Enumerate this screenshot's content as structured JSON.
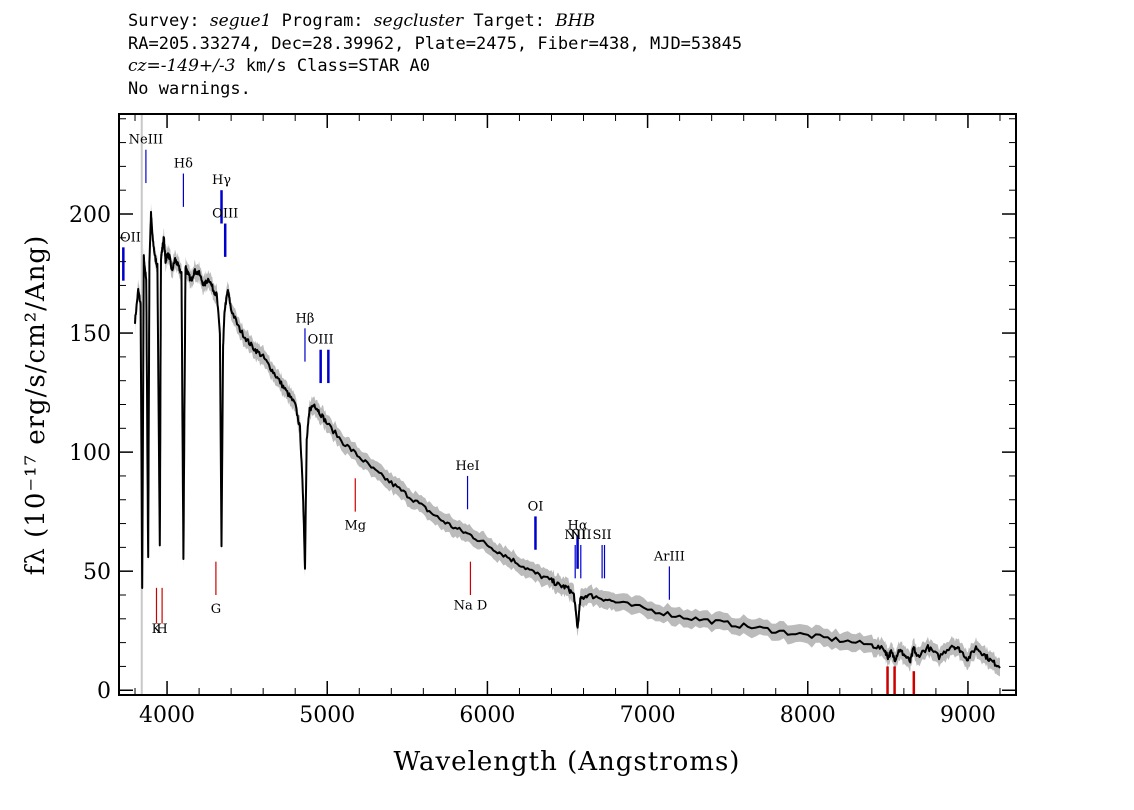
{
  "header": {
    "survey_label": "Survey:",
    "survey": "segue1",
    "program_label": "Program:",
    "program": "segcluster",
    "target_label": "Target:",
    "target": "BHB",
    "line2": "RA=205.33274, Dec=28.39962, Plate=2475, Fiber=438, MJD=53845",
    "cz_value": "cz=-149+/-3",
    "cz_rest": "km/s Class=STAR A0",
    "line4": "No warnings."
  },
  "chart_data": {
    "type": "line",
    "xlabel": "Wavelength (Angstroms)",
    "ylabel": "fλ (10⁻¹⁷ erg/s/cm²/Ang)",
    "xlim": [
      3700,
      9300
    ],
    "ylim": [
      -2,
      242
    ],
    "x_ticks": [
      4000,
      5000,
      6000,
      7000,
      8000,
      9000
    ],
    "y_ticks": [
      0,
      50,
      100,
      150,
      200
    ],
    "x_tick_labels": [
      "4000",
      "5000",
      "6000",
      "7000",
      "8000",
      "9000"
    ],
    "y_tick_labels": [
      "0",
      "50",
      "100",
      "150",
      "200"
    ],
    "grid": false,
    "colors": {
      "spectrum": "#000000",
      "error_band": "#bbbbbb",
      "emission": "#0000cc",
      "absorption": "#cc0000",
      "marker": "#c8c8c8"
    },
    "series": [
      {
        "x": [
          3800,
          3820,
          3835,
          3845,
          3855,
          3870,
          3882,
          3890,
          3900,
          3910,
          3925,
          3940,
          3955,
          3962,
          3970,
          3980,
          3990,
          4000,
          4015,
          4030,
          4050,
          4070,
          4090,
          4102,
          4115,
          4130,
          4150,
          4170,
          4200,
          4230,
          4260,
          4290,
          4310,
          4330,
          4340,
          4350,
          4360,
          4380,
          4400,
          4450,
          4500,
          4550,
          4600,
          4650,
          4700,
          4750,
          4800,
          4830,
          4850,
          4861,
          4872,
          4890,
          4920,
          4950,
          5000,
          5100,
          5200,
          5300,
          5400,
          5500,
          5600,
          5700,
          5800,
          5900,
          6000,
          6100,
          6200,
          6300,
          6400,
          6450,
          6500,
          6540,
          6563,
          6580,
          6620,
          6700,
          6800,
          7000,
          7200,
          7400,
          7600,
          7800,
          8000,
          8200,
          8400,
          8480,
          8500,
          8520,
          8545,
          8570,
          8600,
          8640,
          8662,
          8680,
          8750,
          8820,
          8900,
          8950,
          9000,
          9050,
          9100,
          9150,
          9200
        ],
        "y": [
          155,
          168,
          162,
          42,
          182,
          172,
          55,
          180,
          200,
          190,
          182,
          178,
          60,
          182,
          185,
          190,
          180,
          183,
          182,
          176,
          181,
          178,
          175,
          55,
          178,
          175,
          172,
          176,
          175,
          170,
          173,
          168,
          166,
          150,
          60,
          145,
          160,
          168,
          160,
          152,
          147,
          143,
          140,
          135,
          130,
          125,
          120,
          110,
          80,
          52,
          105,
          118,
          120,
          117,
          112,
          104,
          98,
          92,
          87,
          82,
          77,
          72,
          68,
          65,
          61,
          57,
          53,
          49,
          46,
          44,
          43,
          40,
          26,
          38,
          40,
          39,
          37,
          34,
          31,
          29,
          27,
          25,
          23,
          21,
          19,
          17,
          14,
          16,
          13,
          17,
          15,
          12,
          18,
          14,
          18,
          14,
          19,
          17,
          13,
          18,
          15,
          12,
          10
        ]
      }
    ],
    "marker_line_x": 3842,
    "emission_lines": [
      {
        "label": "OII",
        "x": 3727,
        "y0": 172,
        "y1": 186,
        "bold": true
      },
      {
        "label": "NeIII",
        "x": 3868,
        "y0": 213,
        "y1": 227,
        "bold": false
      },
      {
        "label": "Hδ",
        "x": 4102,
        "y0": 203,
        "y1": 217,
        "bold": false
      },
      {
        "label": "Hγ",
        "x": 4340,
        "y0": 196,
        "y1": 210,
        "bold": true
      },
      {
        "label": "OIII",
        "x": 4363,
        "y0": 182,
        "y1": 196,
        "bold": true
      },
      {
        "label": "Hβ",
        "x": 4861,
        "y0": 138,
        "y1": 152,
        "bold": false
      },
      {
        "label": "OIII",
        "x": 4959,
        "y0": 129,
        "y1": 143,
        "bold": true
      },
      {
        "label": "",
        "x": 5007,
        "y0": 129,
        "y1": 143,
        "bold": true
      },
      {
        "label": "HeI",
        "x": 5876,
        "y0": 76,
        "y1": 90,
        "bold": false
      },
      {
        "label": "OI",
        "x": 6300,
        "y0": 59,
        "y1": 73,
        "bold": true
      },
      {
        "label": "NII",
        "x": 6548,
        "y0": 47,
        "y1": 61,
        "bold": false
      },
      {
        "label": "Hα",
        "x": 6563,
        "y0": 51,
        "y1": 65,
        "bold": true
      },
      {
        "label": "NII",
        "x": 6583,
        "y0": 47,
        "y1": 61,
        "bold": false
      },
      {
        "label": "SII",
        "x": 6716,
        "y0": 47,
        "y1": 61,
        "bold": false
      },
      {
        "label": "",
        "x": 6731,
        "y0": 47,
        "y1": 61,
        "bold": false
      },
      {
        "label": "ArIII",
        "x": 7136,
        "y0": 38,
        "y1": 52,
        "bold": false
      }
    ],
    "absorption_lines": [
      {
        "label": "",
        "x": 3934,
        "y0": 28,
        "y1": 43
      },
      {
        "label": "",
        "x": 3969,
        "y0": 28,
        "y1": 43
      },
      {
        "label": "G",
        "x": 4305,
        "y0": 40,
        "y1": 54
      },
      {
        "label": "Mg",
        "x": 5175,
        "y0": 75,
        "y1": 89
      },
      {
        "label": "",
        "x": 5894,
        "y0": 40,
        "y1": 54
      },
      {
        "label": "",
        "x": 8498,
        "y0": -2,
        "y1": 10
      },
      {
        "label": "",
        "x": 8542,
        "y0": -2,
        "y1": 10
      },
      {
        "label": "",
        "x": 8662,
        "y0": -2,
        "y1": 8
      }
    ],
    "group_labels": [
      {
        "label": "K",
        "x": 3934,
        "y": 24
      },
      {
        "label": "H",
        "x": 3969,
        "y": 24
      },
      {
        "label": "Na D",
        "x": 5894,
        "y": 34
      }
    ]
  }
}
